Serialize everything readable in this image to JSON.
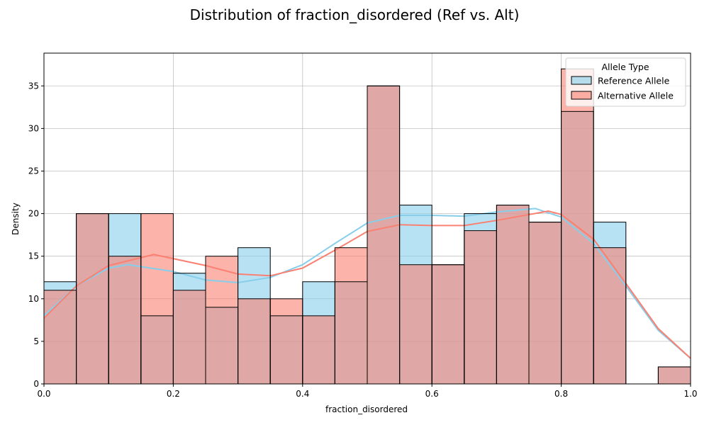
{
  "chart_data": {
    "type": "bar",
    "title": "Distribution of fraction_disordered (Ref vs. Alt)",
    "xlabel": "fraction_disordered",
    "ylabel": "Density",
    "xlim": [
      0,
      1.0
    ],
    "ylim": [
      0,
      38.85
    ],
    "xticks": [
      "0.0",
      "0.2",
      "0.4",
      "0.6",
      "0.8",
      "1.0"
    ],
    "yticks": [
      "0",
      "5",
      "10",
      "15",
      "20",
      "25",
      "30",
      "35"
    ],
    "grid": true,
    "legend": {
      "title": "Allele Type",
      "placement": "top-right",
      "entries": [
        "Reference Allele",
        "Alternative Allele"
      ]
    },
    "bin_edges": [
      0,
      0.05,
      0.1,
      0.15,
      0.2,
      0.25,
      0.3,
      0.35,
      0.4,
      0.45,
      0.5,
      0.55,
      0.6,
      0.65,
      0.7,
      0.75,
      0.8,
      0.85,
      0.9,
      0.95,
      1.0
    ],
    "series": [
      {
        "name": "Reference Allele",
        "color": "#87CEEB",
        "values": [
          12,
          20,
          20,
          8,
          13,
          9,
          16,
          8,
          12,
          12,
          35,
          21,
          14,
          20,
          21,
          19,
          32,
          19,
          0,
          2
        ],
        "kde": [
          [
            0.0,
            8.0
          ],
          [
            0.05,
            11.5
          ],
          [
            0.1,
            13.6
          ],
          [
            0.13,
            14.0
          ],
          [
            0.2,
            13.2
          ],
          [
            0.25,
            12.2
          ],
          [
            0.3,
            11.9
          ],
          [
            0.35,
            12.5
          ],
          [
            0.4,
            14.0
          ],
          [
            0.45,
            16.5
          ],
          [
            0.5,
            18.9
          ],
          [
            0.55,
            19.8
          ],
          [
            0.6,
            19.8
          ],
          [
            0.65,
            19.7
          ],
          [
            0.7,
            20.2
          ],
          [
            0.76,
            20.6
          ],
          [
            0.8,
            19.6
          ],
          [
            0.85,
            16.5
          ],
          [
            0.9,
            11.5
          ],
          [
            0.95,
            6.3
          ],
          [
            1.0,
            3.0
          ]
        ]
      },
      {
        "name": "Alternative Allele",
        "color": "#FA8072",
        "values": [
          11,
          20,
          15,
          20,
          11,
          15,
          10,
          10,
          8,
          16,
          35,
          14,
          14,
          18,
          21,
          19,
          37,
          16,
          0,
          2
        ],
        "kde": [
          [
            0.0,
            7.7
          ],
          [
            0.05,
            11.5
          ],
          [
            0.1,
            13.9
          ],
          [
            0.17,
            15.2
          ],
          [
            0.25,
            13.9
          ],
          [
            0.3,
            12.9
          ],
          [
            0.35,
            12.7
          ],
          [
            0.4,
            13.6
          ],
          [
            0.45,
            15.7
          ],
          [
            0.5,
            17.9
          ],
          [
            0.55,
            18.7
          ],
          [
            0.6,
            18.6
          ],
          [
            0.65,
            18.6
          ],
          [
            0.7,
            19.2
          ],
          [
            0.78,
            20.3
          ],
          [
            0.8,
            19.9
          ],
          [
            0.85,
            17.0
          ],
          [
            0.9,
            11.8
          ],
          [
            0.95,
            6.5
          ],
          [
            1.0,
            3.0
          ]
        ]
      }
    ]
  }
}
